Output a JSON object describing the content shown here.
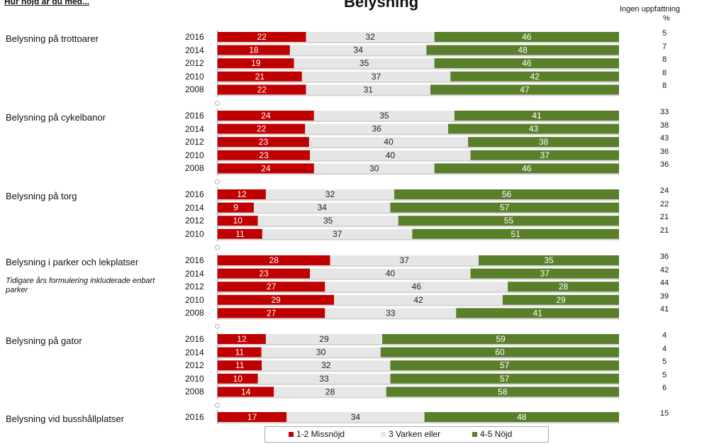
{
  "header": {
    "question": "Hur nöjd är du med...",
    "title": "Belysning",
    "no_opinion_title": "Ingen uppfattning",
    "percent_sign": "%"
  },
  "legend": [
    {
      "label": "1-2 Missnöjd",
      "color": "#c00000"
    },
    {
      "label": "3 Varken eller",
      "color": "#e6e6e6"
    },
    {
      "label": "4-5 Nöjd",
      "color": "#5a7f2b"
    }
  ],
  "chart_data": {
    "type": "bar",
    "orientation": "horizontal",
    "stacked": true,
    "percent_stacked": true,
    "title": "Belysning",
    "series_names": [
      "1-2 Missnöjd",
      "3 Varken eller",
      "4-5 Nöjd"
    ],
    "colors": [
      "#c00000",
      "#e6e6e6",
      "#5a7f2b"
    ],
    "legend_position": "bottom",
    "groups": [
      {
        "name": "Belysning på trottoarer",
        "note": "",
        "rows": [
          {
            "year": "2016",
            "values": [
              22,
              32,
              46
            ],
            "no_opinion": 5
          },
          {
            "year": "2014",
            "values": [
              18,
              34,
              48
            ],
            "no_opinion": 7
          },
          {
            "year": "2012",
            "values": [
              19,
              35,
              46
            ],
            "no_opinion": 8
          },
          {
            "year": "2010",
            "values": [
              21,
              37,
              42
            ],
            "no_opinion": 8
          },
          {
            "year": "2008",
            "values": [
              22,
              31,
              47
            ],
            "no_opinion": 8
          }
        ]
      },
      {
        "name": "Belysning på cykelbanor",
        "note": "",
        "rows": [
          {
            "year": "2016",
            "values": [
              24,
              35,
              41
            ],
            "no_opinion": 33
          },
          {
            "year": "2014",
            "values": [
              22,
              36,
              43
            ],
            "no_opinion": 38
          },
          {
            "year": "2012",
            "values": [
              23,
              40,
              38
            ],
            "no_opinion": 43
          },
          {
            "year": "2010",
            "values": [
              23,
              40,
              37
            ],
            "no_opinion": 36
          },
          {
            "year": "2008",
            "values": [
              24,
              30,
              46
            ],
            "no_opinion": 36
          }
        ]
      },
      {
        "name": "Belysning på torg",
        "note": "",
        "rows": [
          {
            "year": "2016",
            "values": [
              12,
              32,
              56
            ],
            "no_opinion": 24
          },
          {
            "year": "2014",
            "values": [
              9,
              34,
              57
            ],
            "no_opinion": 22
          },
          {
            "year": "2012",
            "values": [
              10,
              35,
              55
            ],
            "no_opinion": 21
          },
          {
            "year": "2010",
            "values": [
              11,
              37,
              51
            ],
            "no_opinion": 21
          }
        ]
      },
      {
        "name": "Belysning i parker och lekplatser",
        "note": "Tidigare års formulering inkluderade enbart parker",
        "rows": [
          {
            "year": "2016",
            "values": [
              28,
              37,
              35
            ],
            "no_opinion": 36
          },
          {
            "year": "2014",
            "values": [
              23,
              40,
              37
            ],
            "no_opinion": 42
          },
          {
            "year": "2012",
            "values": [
              27,
              46,
              28
            ],
            "no_opinion": 44
          },
          {
            "year": "2010",
            "values": [
              29,
              42,
              29
            ],
            "no_opinion": 39
          },
          {
            "year": "2008",
            "values": [
              27,
              33,
              41
            ],
            "no_opinion": 41
          }
        ]
      },
      {
        "name": "Belysning på gator",
        "note": "",
        "rows": [
          {
            "year": "2016",
            "values": [
              12,
              29,
              59
            ],
            "no_opinion": 4
          },
          {
            "year": "2014",
            "values": [
              11,
              30,
              60
            ],
            "no_opinion": 4
          },
          {
            "year": "2012",
            "values": [
              11,
              32,
              57
            ],
            "no_opinion": 5
          },
          {
            "year": "2010",
            "values": [
              10,
              33,
              57
            ],
            "no_opinion": 5
          },
          {
            "year": "2008",
            "values": [
              14,
              28,
              58
            ],
            "no_opinion": 6
          }
        ]
      },
      {
        "name": "Belysning vid busshållplatser",
        "note": "",
        "rows": [
          {
            "year": "2016",
            "values": [
              17,
              34,
              48
            ],
            "no_opinion": 15
          }
        ]
      }
    ]
  }
}
